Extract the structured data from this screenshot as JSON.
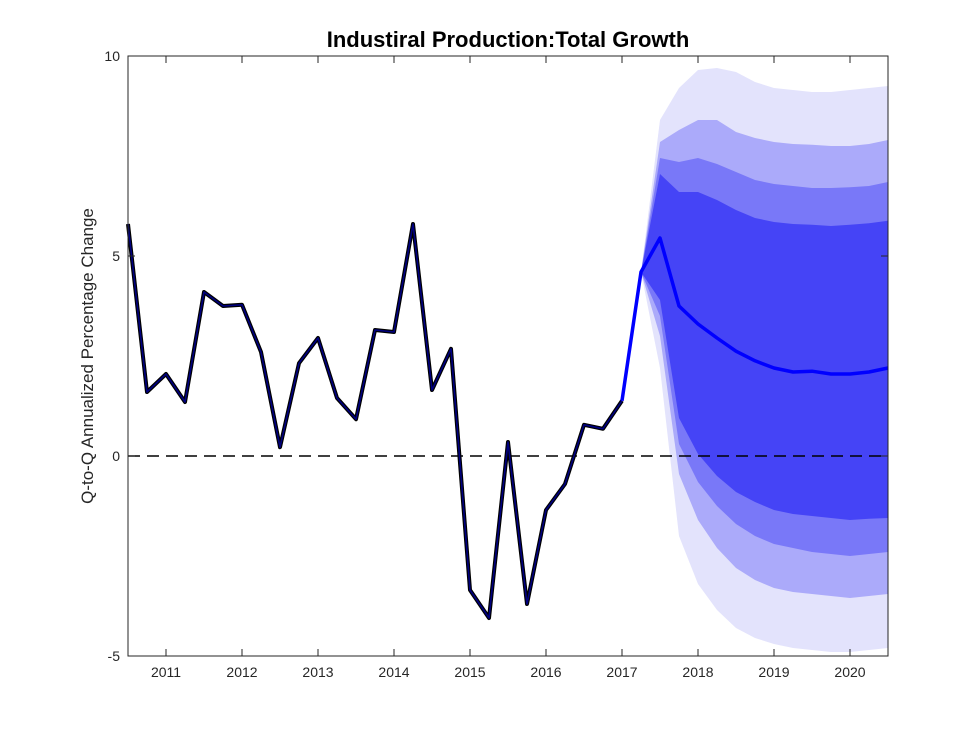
{
  "chart_data": {
    "type": "area",
    "title": "Industiral Production:Total Growth",
    "xlabel": "",
    "ylabel": "Q-to-Q Annualized Percentage Change",
    "xlim": [
      2010.5,
      2020.5
    ],
    "ylim": [
      -5,
      10
    ],
    "yticks": [
      -5,
      0,
      5,
      10
    ],
    "xticks": [
      2011,
      2012,
      2013,
      2014,
      2015,
      2016,
      2017,
      2018,
      2019,
      2020
    ],
    "zero_line": {
      "y": 0,
      "style": "dashed"
    },
    "grid": false,
    "history": {
      "x": [
        2010.5,
        2010.75,
        2011.0,
        2011.25,
        2011.5,
        2011.75,
        2012.0,
        2012.25,
        2012.5,
        2012.75,
        2013.0,
        2013.25,
        2013.5,
        2013.75,
        2014.0,
        2014.25,
        2014.5,
        2014.75,
        2015.0,
        2015.25,
        2015.5,
        2015.75,
        2016.0,
        2016.25,
        2016.5,
        2016.75,
        2017.0
      ],
      "y": [
        5.8,
        1.6,
        2.05,
        1.35,
        4.1,
        3.75,
        3.78,
        2.6,
        0.22,
        2.32,
        2.95,
        1.45,
        0.92,
        3.15,
        3.1,
        5.8,
        1.65,
        2.68,
        -3.35,
        -4.05,
        0.35,
        -3.7,
        -1.35,
        -0.7,
        0.78,
        0.68,
        1.38
      ]
    },
    "forecast": {
      "x": [
        2017.0,
        2017.25,
        2017.5,
        2017.75,
        2018.0,
        2018.25,
        2018.5,
        2018.75,
        2019.0,
        2019.25,
        2019.5,
        2019.75,
        2020.0,
        2020.25,
        2020.5
      ],
      "median": [
        1.38,
        4.6,
        5.45,
        3.75,
        3.3,
        2.95,
        2.62,
        2.38,
        2.2,
        2.1,
        2.12,
        2.05,
        2.05,
        2.1,
        2.2
      ],
      "bands": [
        {
          "name": "outer",
          "color": "#e3e3fc",
          "upper": [
            1.38,
            4.6,
            8.4,
            9.2,
            9.65,
            9.7,
            9.6,
            9.35,
            9.2,
            9.15,
            9.1,
            9.1,
            9.15,
            9.2,
            9.25
          ],
          "lower": [
            1.38,
            4.6,
            2.2,
            -2.0,
            -3.2,
            -3.85,
            -4.3,
            -4.55,
            -4.7,
            -4.8,
            -4.85,
            -4.9,
            -4.9,
            -4.85,
            -4.8
          ]
        },
        {
          "name": "third",
          "color": "#abaafa",
          "upper": [
            1.38,
            4.6,
            7.85,
            8.15,
            8.4,
            8.4,
            8.1,
            7.95,
            7.85,
            7.8,
            7.78,
            7.75,
            7.75,
            7.8,
            7.9
          ],
          "lower": [
            1.38,
            4.6,
            3.0,
            -0.45,
            -1.6,
            -2.3,
            -2.8,
            -3.1,
            -3.3,
            -3.4,
            -3.45,
            -3.5,
            -3.55,
            -3.5,
            -3.45
          ]
        },
        {
          "name": "second",
          "color": "#7978f8",
          "upper": [
            1.38,
            4.6,
            7.45,
            7.35,
            7.45,
            7.3,
            7.1,
            6.9,
            6.8,
            6.75,
            6.7,
            6.7,
            6.72,
            6.75,
            6.85
          ],
          "lower": [
            1.38,
            4.6,
            3.5,
            0.3,
            -0.65,
            -1.25,
            -1.7,
            -2.0,
            -2.2,
            -2.3,
            -2.4,
            -2.45,
            -2.5,
            -2.45,
            -2.4
          ]
        },
        {
          "name": "inner",
          "color": "#4544f6",
          "upper": [
            1.38,
            4.6,
            7.05,
            6.6,
            6.6,
            6.4,
            6.15,
            5.95,
            5.85,
            5.8,
            5.78,
            5.75,
            5.78,
            5.82,
            5.88
          ],
          "lower": [
            1.38,
            4.6,
            3.9,
            0.95,
            0.05,
            -0.5,
            -0.9,
            -1.15,
            -1.35,
            -1.45,
            -1.5,
            -1.55,
            -1.6,
            -1.57,
            -1.55
          ]
        }
      ]
    },
    "colors": {
      "history_line": "#000080",
      "history_outline": "#000000",
      "forecast_line": "#0000ff",
      "zero_line": "#000000"
    }
  }
}
